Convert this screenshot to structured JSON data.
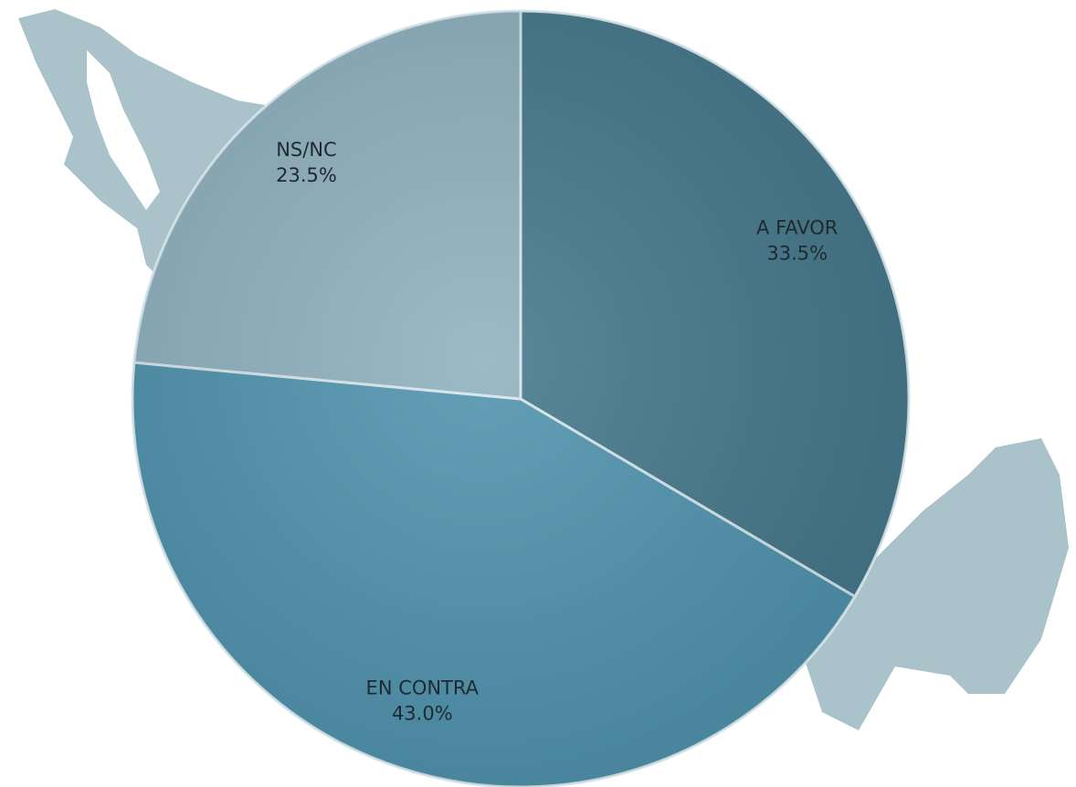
{
  "chart_data": {
    "type": "pie",
    "categories": [
      "A FAVOR",
      "EN CONTRA",
      "NS/NC"
    ],
    "values": [
      33.5,
      43.0,
      23.5
    ],
    "value_labels": [
      "33.5%",
      "43.0%",
      "23.5%"
    ],
    "colors": [
      "#45788a",
      "#4f93ad",
      "#8fb0be"
    ]
  }
}
